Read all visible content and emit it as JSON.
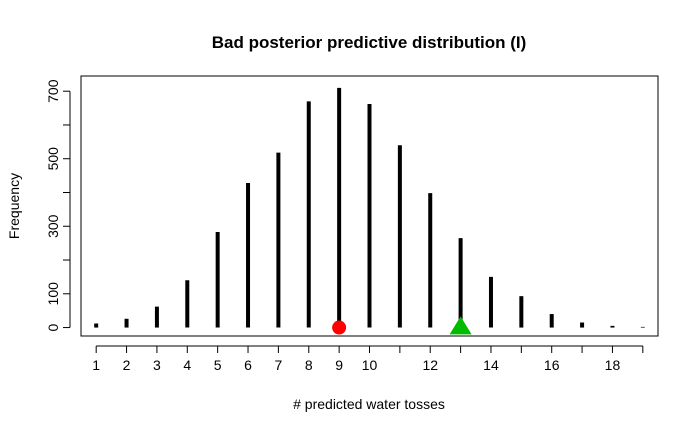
{
  "chart_data": {
    "type": "bar",
    "title": "Bad posterior predictive distribution (I)",
    "xlabel": "# predicted water tosses",
    "ylabel": "Frequency",
    "x": [
      1,
      2,
      3,
      4,
      5,
      6,
      7,
      8,
      9,
      10,
      11,
      12,
      13,
      14,
      15,
      16,
      17,
      18,
      19
    ],
    "values": [
      12,
      26,
      62,
      140,
      283,
      428,
      518,
      670,
      710,
      662,
      540,
      398,
      265,
      150,
      93,
      40,
      15,
      5,
      2
    ],
    "xlim": [
      0.5,
      19.5
    ],
    "ylim": [
      -25,
      745
    ],
    "x_ticks": [
      1,
      2,
      3,
      4,
      5,
      6,
      7,
      8,
      9,
      10,
      12,
      14,
      16,
      18
    ],
    "y_ticks": [
      0,
      100,
      300,
      500,
      700
    ],
    "y_minor_ticks": [
      200,
      400,
      600
    ],
    "grid": false,
    "markers": [
      {
        "shape": "circle",
        "x": 9,
        "y": 0,
        "color": "#ff0000"
      },
      {
        "shape": "triangle",
        "x": 13,
        "y": 0,
        "color": "#00bb00"
      }
    ],
    "bar_color": "#000000"
  }
}
